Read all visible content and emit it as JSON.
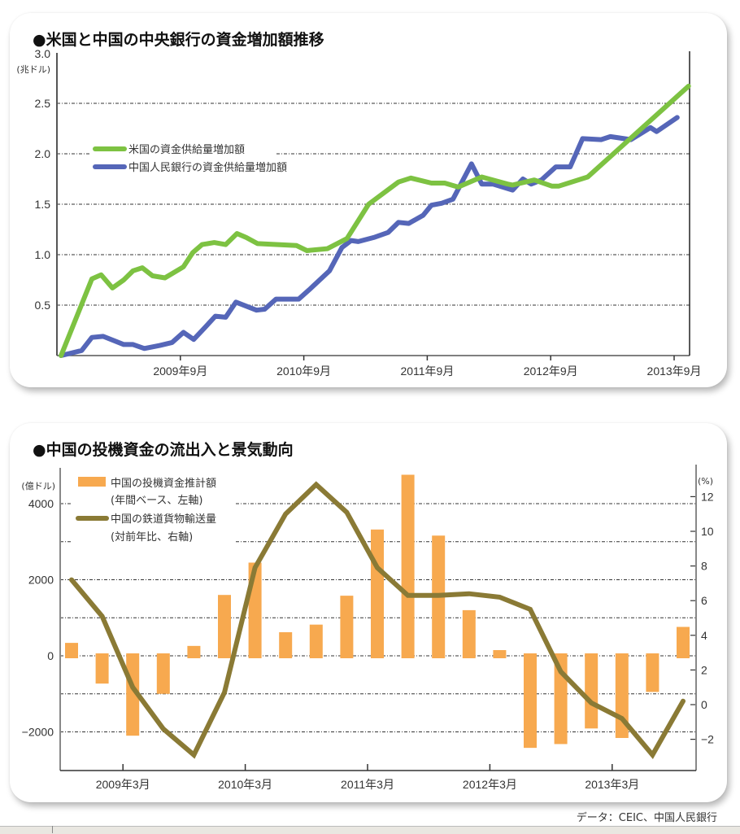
{
  "source_note": "データ：CEIC、中国人民銀行",
  "chart_data": [
    {
      "type": "line",
      "title": "●米国と中国の中央銀行の資金増加額推移",
      "ylabel": "(兆ドル)",
      "y_top_label": "3.0",
      "ylim": [
        0,
        3.0
      ],
      "yticks": [
        0.5,
        1.0,
        1.5,
        2.0,
        2.5
      ],
      "ytick_labels": [
        "0.5",
        "1.0",
        "1.5",
        "2.0",
        "2.5"
      ],
      "x_unit": "months since 2008年9月",
      "xlim": [
        0,
        61.5
      ],
      "xticks": [
        12,
        24,
        36,
        48,
        60
      ],
      "xtick_labels": [
        "2009年9月",
        "2010年9月",
        "2011年9月",
        "2012年9月",
        "2013年9月"
      ],
      "grid": "horizontal dashed",
      "legend": "upper-left",
      "series": [
        {
          "name": "米国の資金供給量増加額",
          "color": "#7dc242",
          "x": [
            0.4,
            3.4,
            4.3,
            5.4,
            6.5,
            7.4,
            8.3,
            9.3,
            10.5,
            12.3,
            13.2,
            14.1,
            15.3,
            16.4,
            17.5,
            18.4,
            19.5,
            23.3,
            24.3,
            26.3,
            28.2,
            30.3,
            33.2,
            34.4,
            36.4,
            37.7,
            39.0,
            41.3,
            43.8,
            44.3,
            46.4,
            48.1,
            48.8,
            51.6,
            61.4
          ],
          "y": [
            0.0,
            0.76,
            0.8,
            0.67,
            0.75,
            0.84,
            0.87,
            0.79,
            0.77,
            0.88,
            1.02,
            1.1,
            1.12,
            1.1,
            1.21,
            1.17,
            1.11,
            1.09,
            1.04,
            1.06,
            1.16,
            1.5,
            1.72,
            1.76,
            1.71,
            1.71,
            1.67,
            1.77,
            1.7,
            1.69,
            1.74,
            1.68,
            1.68,
            1.77,
            2.67
          ]
        },
        {
          "name": "中国人民銀行の資金供給量増加額",
          "color": "#5566b8",
          "x": [
            0.4,
            2.4,
            3.4,
            4.5,
            6.5,
            7.4,
            8.5,
            10.0,
            11.2,
            12.3,
            13.3,
            14.4,
            15.4,
            16.4,
            17.4,
            19.4,
            20.2,
            21.3,
            23.5,
            24.5,
            26.5,
            27.7,
            28.6,
            29.3,
            30.8,
            32.2,
            33.2,
            34.2,
            35.6,
            36.4,
            37.4,
            38.5,
            40.3,
            41.3,
            42.4,
            44.3,
            45.3,
            46.1,
            47.1,
            48.5,
            49.9,
            51.1,
            52.9,
            53.8,
            55.8,
            57.7,
            58.3,
            60.3
          ],
          "y": [
            0.0,
            0.05,
            0.18,
            0.19,
            0.11,
            0.11,
            0.07,
            0.1,
            0.13,
            0.23,
            0.16,
            0.28,
            0.39,
            0.38,
            0.53,
            0.45,
            0.46,
            0.56,
            0.56,
            0.65,
            0.84,
            1.07,
            1.14,
            1.13,
            1.17,
            1.22,
            1.32,
            1.31,
            1.39,
            1.49,
            1.51,
            1.55,
            1.9,
            1.7,
            1.7,
            1.64,
            1.75,
            1.7,
            1.74,
            1.87,
            1.87,
            2.15,
            2.14,
            2.17,
            2.14,
            2.26,
            2.22,
            2.36
          ]
        }
      ]
    },
    {
      "type": "bar+line",
      "title": "●中国の投機資金の流出入と景気動向",
      "ylabel_left": "(億ドル)",
      "ylabel_right": "(%)",
      "ylim_left": [
        -3000,
        4800
      ],
      "yticks_left": [
        -2000,
        0,
        2000,
        4000
      ],
      "ytick_labels_left": [
        "−2000",
        "0",
        "2000",
        "4000"
      ],
      "ylim_right": [
        -3.8,
        13.2
      ],
      "yticks_right": [
        -2,
        0,
        2,
        4,
        6,
        8,
        10,
        12
      ],
      "ytick_labels_right": [
        "−2",
        "0",
        "2",
        "4",
        "6",
        "8",
        "10",
        "12"
      ],
      "x_unit": "quarter index (0 = 2008Q3)",
      "xticks": [
        2,
        6,
        10,
        14,
        18
      ],
      "xtick_labels": [
        "2009年3月",
        "2010年3月",
        "2011年3月",
        "2012年3月",
        "2013年3月"
      ],
      "grid": "horizontal dashed",
      "legend": "upper-left",
      "categories": [
        "2008Q3",
        "2008Q4",
        "2009Q1",
        "2009Q2",
        "2009Q3",
        "2009Q4",
        "2010Q1",
        "2010Q2",
        "2010Q3",
        "2010Q4",
        "2011Q1",
        "2011Q2",
        "2011Q3",
        "2011Q4",
        "2012Q1",
        "2012Q2",
        "2012Q3",
        "2012Q4",
        "2013Q1",
        "2013Q2",
        "2013Q3"
      ],
      "series": [
        {
          "name": "中国の投機資金推計額",
          "name_note": "(年間ベース、左軸)",
          "kind": "bar",
          "axis": "left",
          "color": "#f7a94f",
          "values": [
            340,
            -730,
            -2100,
            -1000,
            260,
            1600,
            2450,
            620,
            820,
            1580,
            3320,
            4760,
            3160,
            1200,
            150,
            -2420,
            -2320,
            -1910,
            -2160,
            -950,
            760
          ]
        },
        {
          "name": "中国の鉄道貨物輸送量",
          "name_note": "(対前年比、右軸)",
          "kind": "line",
          "axis": "right",
          "color": "#8a7a35",
          "values": [
            7.2,
            5.1,
            1.0,
            -1.4,
            -2.9,
            0.7,
            7.9,
            11.0,
            12.7,
            11.1,
            7.9,
            6.3,
            6.3,
            6.4,
            6.2,
            5.5,
            1.9,
            0.1,
            -0.8,
            -2.9,
            0.2
          ]
        }
      ]
    }
  ]
}
